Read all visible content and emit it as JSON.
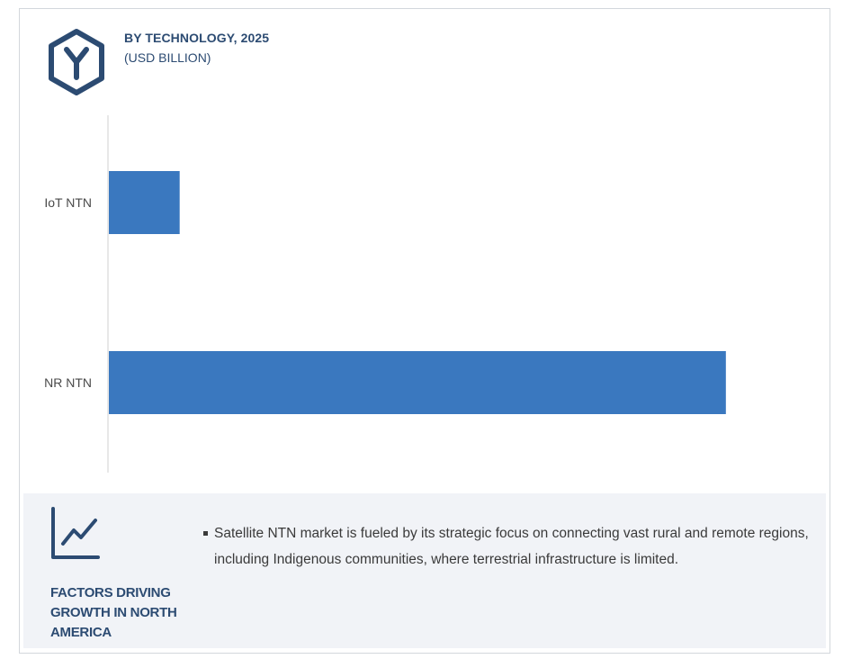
{
  "header": {
    "icon": "hexagon-y-logo-icon",
    "title": "BY TECHNOLOGY, 2025",
    "subtitle": "(USD BILLION)"
  },
  "chart_data": {
    "type": "bar",
    "orientation": "horizontal",
    "title": "BY TECHNOLOGY, 2025",
    "subtitle": "(USD BILLION)",
    "categories": [
      "IoT NTN",
      "NR NTN"
    ],
    "values": [
      0.7,
      6.1
    ],
    "xlim": [
      0,
      7
    ],
    "grid": false,
    "legend": "none",
    "bar_color": "#3a78bf"
  },
  "factors": {
    "icon": "trend-chart-icon",
    "heading": "FACTORS DRIVING GROWTH IN NORTH AMERICA",
    "items": [
      "Satellite NTN market is fueled by its strategic focus on connecting vast rural and remote regions, including Indigenous communities, where terrestrial infrastructure is limited."
    ]
  },
  "colors": {
    "accent": "#2c4b72",
    "bar": "#3a78bf",
    "panel_bg": "#f1f3f7"
  }
}
